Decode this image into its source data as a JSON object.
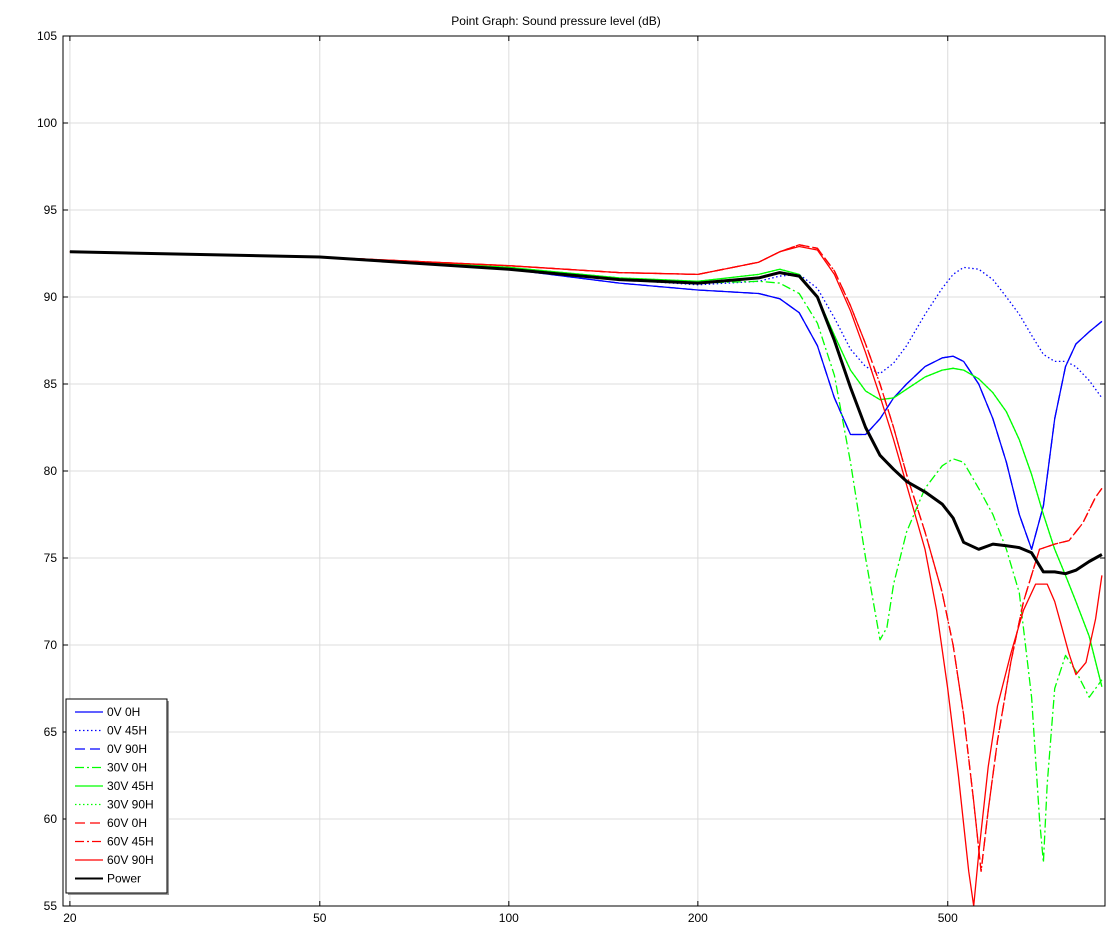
{
  "chart_data": {
    "type": "line",
    "title": "Point Graph: Sound pressure level (dB)",
    "xlabel": "",
    "ylabel": "",
    "xscale": "log",
    "xlim": [
      19.5,
      890
    ],
    "ylim": [
      55,
      105
    ],
    "xticks": [
      20,
      50,
      100,
      200,
      500
    ],
    "yticks": [
      55,
      60,
      65,
      70,
      75,
      80,
      85,
      90,
      95,
      100,
      105
    ],
    "grid": true,
    "legend_position": "bottom-left",
    "series": [
      {
        "name": "0V 0H",
        "color": "#0000ff",
        "dash": "solid",
        "x": [
          20,
          50,
          100,
          150,
          200,
          250,
          270,
          290,
          310,
          330,
          350,
          370,
          390,
          410,
          430,
          460,
          490,
          510,
          530,
          560,
          590,
          620,
          650,
          680,
          710,
          740,
          770,
          800,
          840,
          880
        ],
        "y": [
          92.6,
          92.3,
          91.6,
          90.8,
          90.4,
          90.2,
          89.9,
          89.1,
          87.2,
          84.2,
          82.1,
          82.1,
          83.0,
          84.2,
          85.0,
          86.0,
          86.5,
          86.6,
          86.3,
          85.0,
          83.0,
          80.5,
          77.5,
          75.5,
          78.0,
          83.0,
          86.0,
          87.3,
          88.0,
          88.6
        ]
      },
      {
        "name": "0V 45H",
        "color": "#0000ff",
        "dash": "dotted",
        "x": [
          20,
          50,
          100,
          150,
          200,
          250,
          270,
          290,
          310,
          330,
          350,
          370,
          390,
          410,
          430,
          460,
          490,
          510,
          530,
          560,
          590,
          620,
          650,
          680,
          710,
          740,
          770,
          800,
          840,
          880
        ],
        "y": [
          92.6,
          92.3,
          91.7,
          91.0,
          90.7,
          90.9,
          91.2,
          91.3,
          90.5,
          88.8,
          87.0,
          86.0,
          85.6,
          86.2,
          87.2,
          89.0,
          90.5,
          91.3,
          91.7,
          91.6,
          91.0,
          90.0,
          89.0,
          87.8,
          86.7,
          86.3,
          86.3,
          86.0,
          85.2,
          84.2
        ]
      },
      {
        "name": "0V 90H",
        "color": "#0000ff",
        "dash": "dashed",
        "x": [
          20,
          50,
          100,
          150,
          200,
          250,
          270,
          290,
          310,
          330,
          350,
          370,
          390,
          410,
          430,
          460,
          490,
          510,
          530,
          560,
          590,
          620,
          650,
          680,
          710,
          740,
          770,
          800,
          840,
          880
        ],
        "y": [
          92.6,
          92.3,
          91.6,
          90.8,
          90.4,
          90.2,
          89.9,
          89.1,
          87.2,
          84.2,
          82.1,
          82.1,
          83.0,
          84.2,
          85.0,
          86.0,
          86.5,
          86.6,
          86.3,
          85.0,
          83.0,
          80.5,
          77.5,
          75.5,
          78.0,
          83.0,
          86.0,
          87.3,
          88.0,
          88.6
        ]
      },
      {
        "name": "30V 0H",
        "color": "#00ff00",
        "dash": "dashdot",
        "x": [
          20,
          50,
          100,
          150,
          200,
          250,
          270,
          290,
          310,
          330,
          350,
          370,
          390,
          400,
          410,
          430,
          460,
          490,
          510,
          530,
          560,
          590,
          620,
          650,
          680,
          700,
          710,
          720,
          740,
          770,
          800,
          840,
          880
        ],
        "y": [
          92.6,
          92.3,
          91.7,
          91.0,
          90.8,
          90.9,
          90.8,
          90.2,
          88.5,
          85.5,
          80.5,
          75.0,
          70.3,
          71.0,
          73.5,
          76.5,
          79.0,
          80.3,
          80.7,
          80.5,
          79.0,
          77.5,
          75.5,
          73.0,
          67.0,
          60.0,
          57.5,
          62.0,
          67.5,
          69.4,
          68.5,
          67.0,
          68.0
        ]
      },
      {
        "name": "30V 45H",
        "color": "#00ff00",
        "dash": "solid",
        "x": [
          20,
          50,
          100,
          150,
          200,
          250,
          270,
          290,
          310,
          330,
          350,
          370,
          390,
          410,
          430,
          460,
          490,
          510,
          530,
          560,
          590,
          620,
          650,
          680,
          710,
          740,
          770,
          800,
          840,
          880
        ],
        "y": [
          92.6,
          92.3,
          91.7,
          91.1,
          90.9,
          91.3,
          91.6,
          91.3,
          90.0,
          87.8,
          85.8,
          84.6,
          84.1,
          84.2,
          84.7,
          85.4,
          85.8,
          85.9,
          85.8,
          85.3,
          84.5,
          83.4,
          81.8,
          79.8,
          77.5,
          75.5,
          74.0,
          72.5,
          70.5,
          67.6
        ]
      },
      {
        "name": "30V 90H",
        "color": "#00ff00",
        "dash": "dotted",
        "x": [
          20,
          50,
          100,
          150,
          200,
          250,
          270,
          290,
          310,
          330,
          350,
          370,
          390,
          410,
          430,
          460,
          490,
          510,
          530,
          560,
          590,
          620,
          650,
          680,
          710,
          740,
          770,
          800,
          840,
          880
        ],
        "y": [
          92.6,
          92.3,
          91.7,
          91.1,
          90.9,
          91.3,
          91.6,
          91.3,
          90.0,
          87.8,
          85.8,
          84.6,
          84.1,
          84.2,
          84.7,
          85.4,
          85.8,
          85.9,
          85.8,
          85.3,
          84.5,
          83.4,
          81.8,
          79.8,
          77.5,
          75.5,
          74.0,
          72.5,
          70.5,
          67.6
        ]
      },
      {
        "name": "60V 0H",
        "color": "#ff0000",
        "dash": "dashed",
        "x": [
          20,
          50,
          100,
          150,
          200,
          250,
          270,
          290,
          310,
          330,
          350,
          370,
          390,
          410,
          430,
          460,
          490,
          510,
          530,
          550,
          565,
          580,
          600,
          630,
          660,
          700,
          740,
          780,
          820,
          860,
          880
        ],
        "y": [
          92.6,
          92.3,
          91.8,
          91.4,
          91.3,
          92.0,
          92.6,
          93.0,
          92.8,
          91.5,
          89.5,
          87.3,
          85.0,
          82.5,
          79.8,
          76.5,
          73.0,
          70.0,
          66.0,
          61.0,
          57.0,
          60.5,
          64.5,
          69.0,
          72.5,
          75.5,
          75.8,
          76.0,
          77.0,
          78.5,
          79.0
        ]
      },
      {
        "name": "60V 45H",
        "color": "#ff0000",
        "dash": "dashdot",
        "x": [
          20,
          50,
          100,
          150,
          200,
          250,
          270,
          290,
          310,
          330,
          350,
          370,
          390,
          410,
          430,
          460,
          490,
          510,
          530,
          550,
          565,
          580,
          600,
          630,
          660,
          700,
          740,
          780,
          820,
          860,
          880
        ],
        "y": [
          92.6,
          92.3,
          91.8,
          91.4,
          91.3,
          92.0,
          92.6,
          93.0,
          92.8,
          91.5,
          89.5,
          87.3,
          85.0,
          82.5,
          79.8,
          76.5,
          73.0,
          70.0,
          66.0,
          61.0,
          57.0,
          60.5,
          64.5,
          69.0,
          72.5,
          75.5,
          75.8,
          76.0,
          77.0,
          78.5,
          79.0
        ]
      },
      {
        "name": "60V 90H",
        "color": "#ff0000",
        "dash": "solid",
        "x": [
          20,
          50,
          100,
          150,
          200,
          250,
          270,
          290,
          310,
          330,
          350,
          370,
          390,
          410,
          430,
          460,
          480,
          500,
          520,
          540,
          550,
          560,
          580,
          600,
          630,
          660,
          690,
          720,
          740,
          760,
          780,
          800,
          830,
          860,
          880
        ],
        "y": [
          92.6,
          92.3,
          91.8,
          91.4,
          91.3,
          92.0,
          92.6,
          92.9,
          92.7,
          91.3,
          89.2,
          86.8,
          84.3,
          81.8,
          79.2,
          75.5,
          72.0,
          67.5,
          62.5,
          57.0,
          55.0,
          58.0,
          63.0,
          66.5,
          69.5,
          72.0,
          73.5,
          73.5,
          72.5,
          71.0,
          69.5,
          68.3,
          69.0,
          71.5,
          74.0
        ]
      },
      {
        "name": "Power",
        "color": "#000000",
        "dash": "solid",
        "bold": true,
        "x": [
          20,
          50,
          100,
          150,
          200,
          250,
          270,
          290,
          310,
          330,
          350,
          370,
          390,
          410,
          430,
          460,
          490,
          510,
          530,
          560,
          590,
          620,
          650,
          680,
          710,
          740,
          770,
          800,
          840,
          880
        ],
        "y": [
          92.6,
          92.3,
          91.6,
          91.0,
          90.8,
          91.1,
          91.4,
          91.2,
          90.0,
          87.5,
          84.8,
          82.5,
          80.9,
          80.1,
          79.4,
          78.8,
          78.1,
          77.3,
          75.9,
          75.5,
          75.8,
          75.7,
          75.6,
          75.3,
          74.2,
          74.2,
          74.1,
          74.3,
          74.8,
          75.2
        ]
      }
    ]
  }
}
